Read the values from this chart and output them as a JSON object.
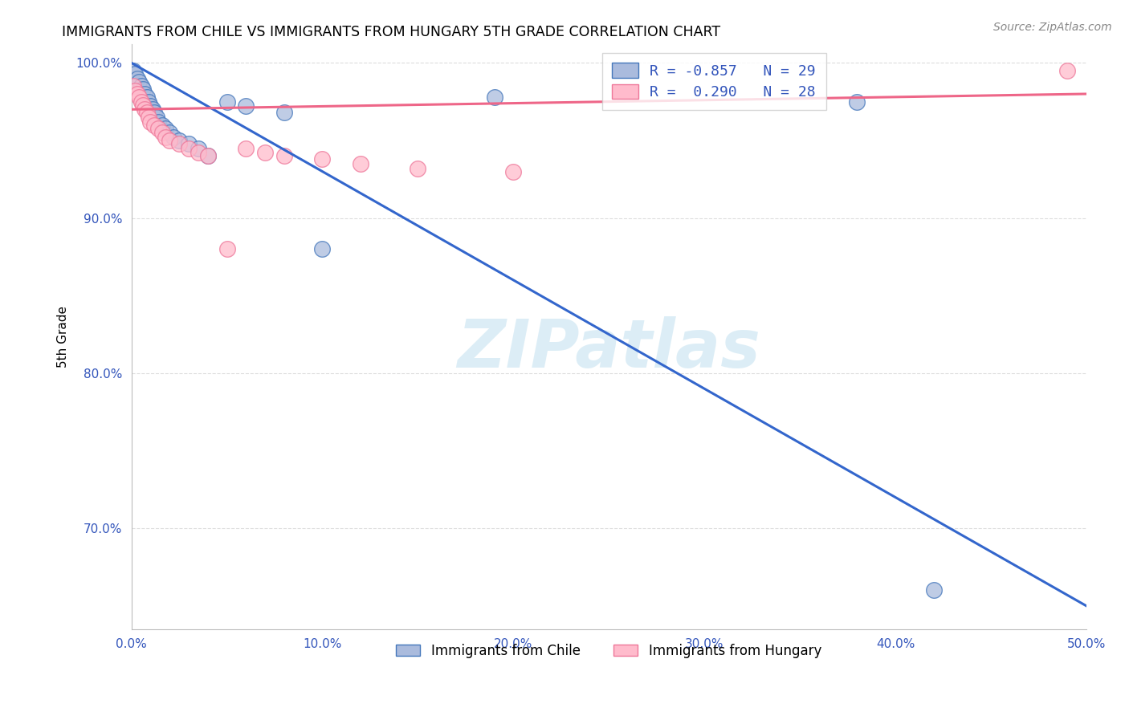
{
  "title": "IMMIGRANTS FROM CHILE VS IMMIGRANTS FROM HUNGARY 5TH GRADE CORRELATION CHART",
  "source": "Source: ZipAtlas.com",
  "ylabel": "5th Grade",
  "xlim": [
    0.0,
    0.5
  ],
  "ylim": [
    0.635,
    1.012
  ],
  "xticks": [
    0.0,
    0.1,
    0.2,
    0.3,
    0.4,
    0.5
  ],
  "xticklabels": [
    "0.0%",
    "10.0%",
    "20.0%",
    "30.0%",
    "40.0%",
    "50.0%"
  ],
  "yticks": [
    0.7,
    0.8,
    0.9,
    1.0
  ],
  "yticklabels": [
    "70.0%",
    "80.0%",
    "90.0%",
    "100.0%"
  ],
  "legend_labels": [
    "Immigrants from Chile",
    "Immigrants from Hungary"
  ],
  "color_chile_face": "#AABBDD",
  "color_chile_edge": "#4477BB",
  "color_hungary_face": "#FFBBCC",
  "color_hungary_edge": "#EE7799",
  "color_line_chile": "#3366CC",
  "color_line_hungary": "#EE6688",
  "watermark": "ZIPatlas",
  "watermark_color": "#BBDDEE",
  "chile_x": [
    0.001,
    0.002,
    0.003,
    0.004,
    0.005,
    0.006,
    0.007,
    0.008,
    0.009,
    0.01,
    0.011,
    0.012,
    0.013,
    0.014,
    0.016,
    0.018,
    0.02,
    0.022,
    0.025,
    0.03,
    0.035,
    0.04,
    0.05,
    0.06,
    0.08,
    0.1,
    0.19,
    0.38,
    0.42
  ],
  "chile_y": [
    0.995,
    0.993,
    0.99,
    0.988,
    0.985,
    0.983,
    0.98,
    0.978,
    0.975,
    0.972,
    0.97,
    0.968,
    0.965,
    0.962,
    0.96,
    0.958,
    0.955,
    0.952,
    0.95,
    0.948,
    0.945,
    0.94,
    0.975,
    0.972,
    0.968,
    0.88,
    0.978,
    0.975,
    0.66
  ],
  "hungary_x": [
    0.001,
    0.002,
    0.003,
    0.004,
    0.005,
    0.006,
    0.007,
    0.008,
    0.009,
    0.01,
    0.012,
    0.014,
    0.016,
    0.018,
    0.02,
    0.025,
    0.03,
    0.035,
    0.04,
    0.05,
    0.06,
    0.07,
    0.08,
    0.1,
    0.12,
    0.15,
    0.2,
    0.49
  ],
  "hungary_y": [
    0.985,
    0.982,
    0.98,
    0.978,
    0.975,
    0.973,
    0.97,
    0.968,
    0.965,
    0.962,
    0.96,
    0.958,
    0.955,
    0.952,
    0.95,
    0.948,
    0.945,
    0.942,
    0.94,
    0.88,
    0.945,
    0.942,
    0.94,
    0.938,
    0.935,
    0.932,
    0.93,
    0.995
  ],
  "chile_line_x0": 0.0,
  "chile_line_y0": 1.0,
  "chile_line_x1": 0.5,
  "chile_line_y1": 0.65,
  "hungary_line_x0": 0.0,
  "hungary_line_y0": 0.97,
  "hungary_line_x1": 0.5,
  "hungary_line_y1": 0.98
}
